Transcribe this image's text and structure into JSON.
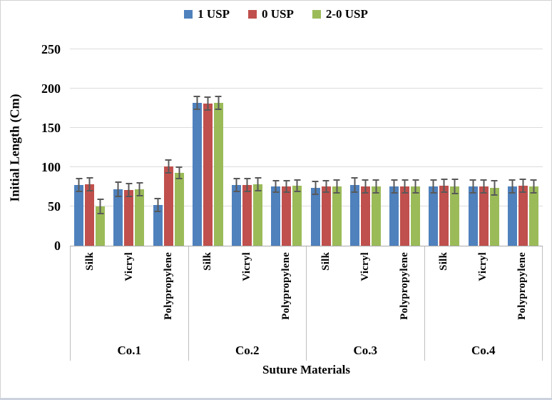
{
  "chart_data": {
    "type": "bar",
    "title": "",
    "ylabel": "Initial Length (Cm)",
    "xlabel": "Suture Materials",
    "ylim": [
      0,
      250
    ],
    "yticks": [
      0,
      50,
      100,
      150,
      200,
      250
    ],
    "grid": "horizontal",
    "legend_position": "top-center",
    "error_bars": true,
    "colors": {
      "series_blue": "#4F81BD",
      "series_red": "#C0504D",
      "series_green": "#9BBB59",
      "error_bar": "#595959",
      "gridline": "#DCDCDC",
      "axis_line": "#A9A9A9"
    },
    "legend": [
      {
        "name": "1 USP",
        "color": "#4F81BD"
      },
      {
        "name": "0 USP",
        "color": "#C0504D"
      },
      {
        "name": "2-0 USP",
        "color": "#9BBB59"
      }
    ],
    "groups": [
      {
        "label": "Co.1",
        "clusters": [
          {
            "label": "Silk",
            "values": [
              77,
              78,
              50
            ],
            "errors": [
              9,
              9,
              10
            ]
          },
          {
            "label": "Vicryl",
            "values": [
              72,
              71,
              72
            ],
            "errors": [
              10,
              9,
              9
            ]
          },
          {
            "label": "Polypropylene",
            "values": [
              52,
              101,
              93
            ],
            "errors": [
              9,
              9,
              8
            ]
          }
        ]
      },
      {
        "label": "Co.2",
        "clusters": [
          {
            "label": "Silk",
            "values": [
              182,
              181,
              182
            ],
            "errors": [
              9,
              9,
              9
            ]
          },
          {
            "label": "Vicryl",
            "values": [
              77,
              77,
              78
            ],
            "errors": [
              9,
              9,
              9
            ]
          },
          {
            "label": "Polypropylene",
            "values": [
              75,
              75,
              76
            ],
            "errors": [
              8,
              8,
              8
            ]
          }
        ]
      },
      {
        "label": "Co.3",
        "clusters": [
          {
            "label": "Silk",
            "values": [
              74,
              75,
              75
            ],
            "errors": [
              9,
              8,
              9
            ]
          },
          {
            "label": "Vicryl",
            "values": [
              77,
              75,
              75
            ],
            "errors": [
              10,
              9,
              9
            ]
          },
          {
            "label": "Polypropylene",
            "values": [
              75,
              75,
              75
            ],
            "errors": [
              9,
              9,
              9
            ]
          }
        ]
      },
      {
        "label": "Co.4",
        "clusters": [
          {
            "label": "Silk",
            "values": [
              75,
              76,
              75
            ],
            "errors": [
              9,
              9,
              10
            ]
          },
          {
            "label": "Vicryl",
            "values": [
              75,
              75,
              74
            ],
            "errors": [
              9,
              9,
              10
            ]
          },
          {
            "label": "Polypropylene",
            "values": [
              75,
              76,
              75
            ],
            "errors": [
              9,
              9,
              9
            ]
          }
        ]
      }
    ]
  }
}
